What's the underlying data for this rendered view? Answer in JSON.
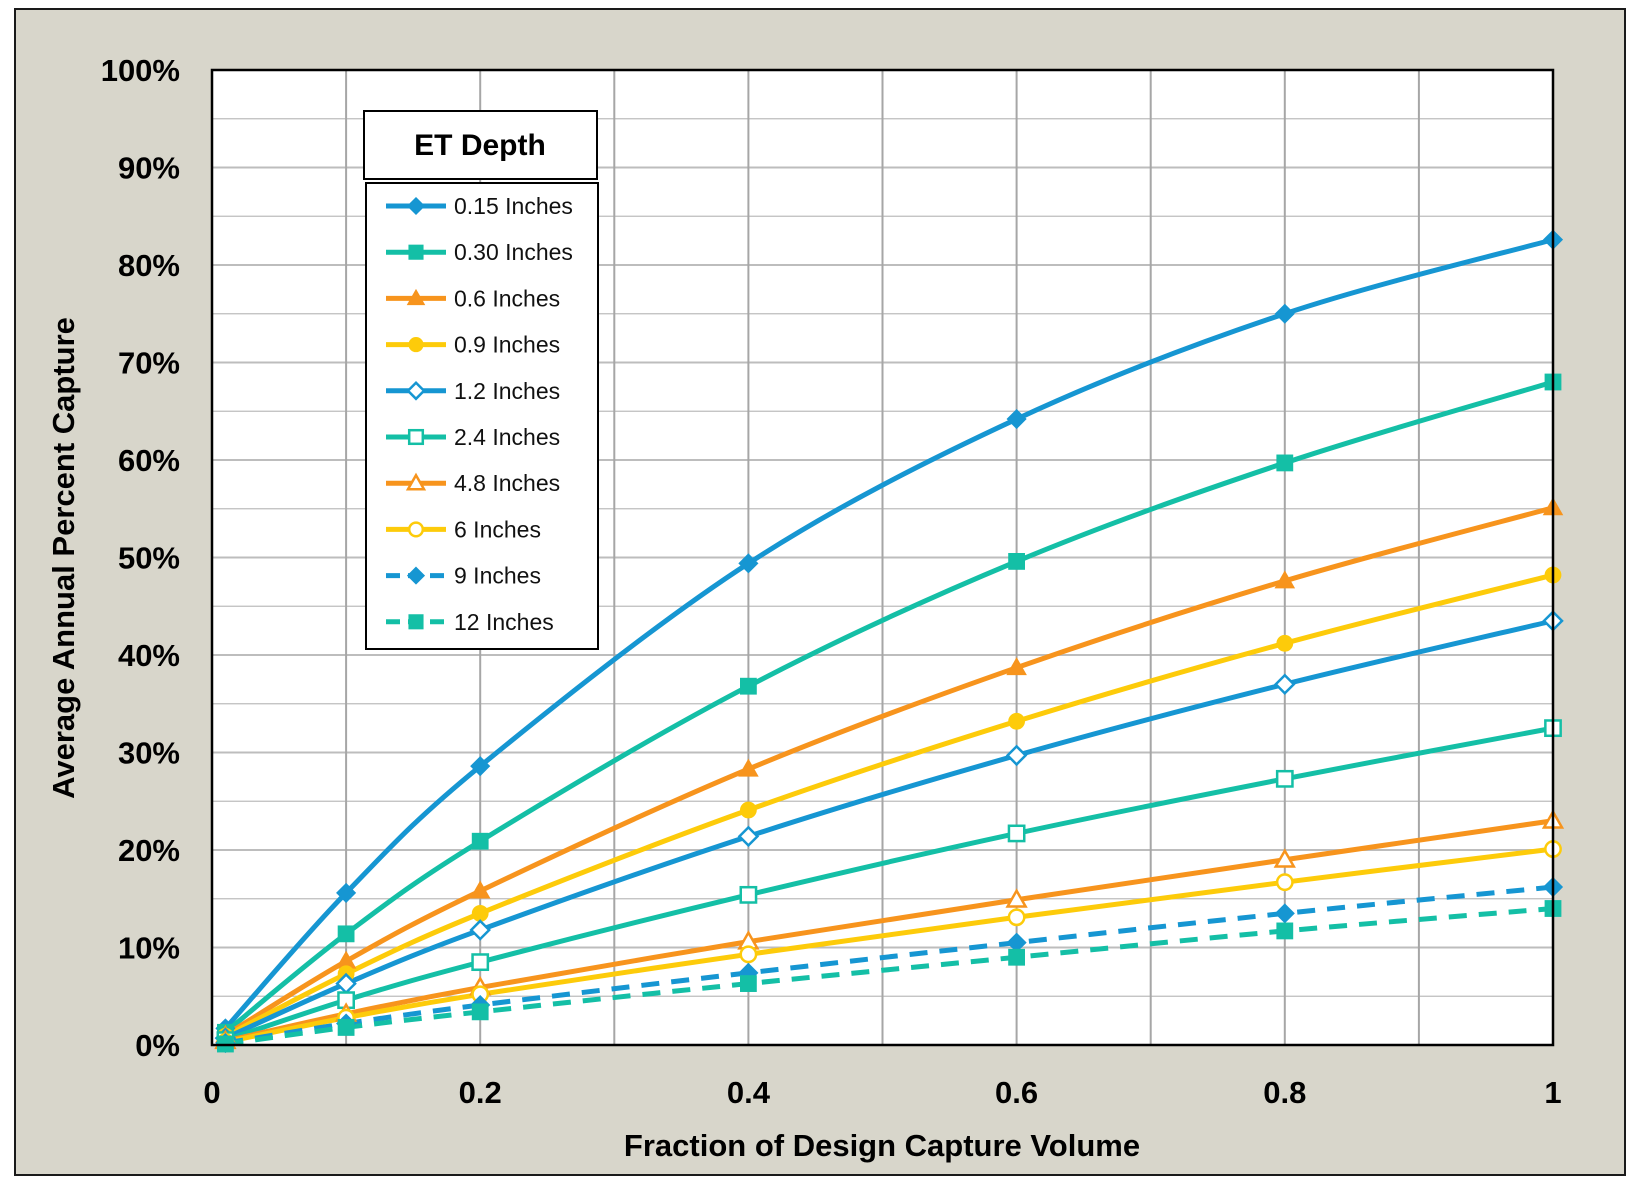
{
  "chart_data": {
    "type": "line",
    "xlabel": "Fraction of Design Capture Volume",
    "ylabel": "Average Annual Percent Capture",
    "xlim": [
      0,
      1
    ],
    "ylim": [
      0,
      100
    ],
    "x_ticks": [
      0,
      0.2,
      0.4,
      0.6,
      0.8,
      1
    ],
    "x_tick_labels": [
      "0",
      "0.2",
      "0.4",
      "0.6",
      "0.8",
      "1"
    ],
    "y_ticks": [
      0,
      10,
      20,
      30,
      40,
      50,
      60,
      70,
      80,
      90,
      100
    ],
    "y_tick_labels": [
      "0%",
      "10%",
      "20%",
      "30%",
      "40%",
      "50%",
      "60%",
      "70%",
      "80%",
      "90%",
      "100%"
    ],
    "grid": true,
    "legend": {
      "title": "ET Depth",
      "placement": "top-left"
    },
    "x": [
      0.01,
      0.1,
      0.2,
      0.4,
      0.6,
      0.8,
      1
    ],
    "series": [
      {
        "name": "0.15 Inches",
        "color": "#1696d2",
        "marker": "diamond",
        "filled": true,
        "dashed": false,
        "values": [
          1.7,
          15.6,
          28.6,
          49.4,
          64.2,
          75.0,
          82.6
        ]
      },
      {
        "name": "0.30 Inches",
        "color": "#14bfa6",
        "marker": "square",
        "filled": true,
        "dashed": false,
        "values": [
          1.3,
          11.4,
          20.9,
          36.8,
          49.6,
          59.7,
          68.0
        ]
      },
      {
        "name": "0.6 Inches",
        "color": "#f7941d",
        "marker": "triangle",
        "filled": true,
        "dashed": false,
        "values": [
          1.0,
          8.6,
          15.8,
          28.3,
          38.7,
          47.6,
          55.1
        ]
      },
      {
        "name": "0.9 Inches",
        "color": "#fdcb0a",
        "marker": "circle",
        "filled": true,
        "dashed": false,
        "values": [
          0.9,
          7.3,
          13.5,
          24.1,
          33.2,
          41.2,
          48.2
        ]
      },
      {
        "name": "1.2 Inches",
        "color": "#1696d2",
        "marker": "diamond",
        "filled": false,
        "dashed": false,
        "values": [
          0.7,
          6.3,
          11.8,
          21.4,
          29.7,
          37.0,
          43.5
        ]
      },
      {
        "name": "2.4 Inches",
        "color": "#14bfa6",
        "marker": "square",
        "filled": false,
        "dashed": false,
        "values": [
          0.5,
          4.6,
          8.5,
          15.4,
          21.7,
          27.3,
          32.5
        ]
      },
      {
        "name": "4.8 Inches",
        "color": "#f7941d",
        "marker": "triangle",
        "filled": false,
        "dashed": false,
        "values": [
          0.4,
          3.2,
          5.9,
          10.6,
          14.9,
          19.0,
          23.0
        ]
      },
      {
        "name": "6 Inches",
        "color": "#fdcb0a",
        "marker": "circle",
        "filled": false,
        "dashed": false,
        "values": [
          0.3,
          2.8,
          5.2,
          9.3,
          13.1,
          16.7,
          20.1
        ]
      },
      {
        "name": "9 Inches",
        "color": "#1696d2",
        "marker": "diamond",
        "filled": true,
        "dashed": true,
        "values": [
          0.2,
          2.2,
          4.1,
          7.4,
          10.5,
          13.5,
          16.2
        ]
      },
      {
        "name": "12 Inches",
        "color": "#14bfa6",
        "marker": "square",
        "filled": true,
        "dashed": true,
        "values": [
          0.1,
          1.8,
          3.4,
          6.3,
          9.0,
          11.7,
          14.0
        ]
      }
    ]
  }
}
